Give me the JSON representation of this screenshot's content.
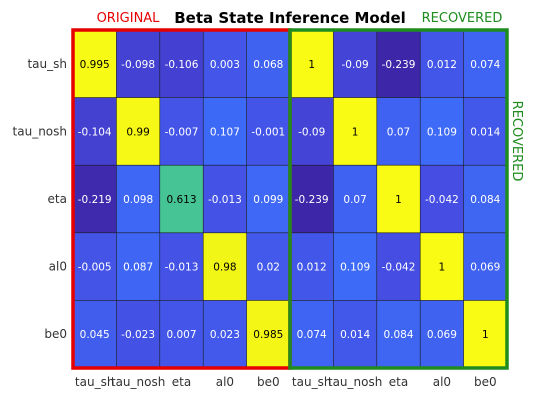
{
  "chart_data": {
    "type": "heatmap",
    "title": "Beta State Inference Model",
    "group_labels": {
      "original": "ORIGINAL",
      "recovered_top": "RECOVERED",
      "recovered_side": "RECOVERED"
    },
    "rows": [
      "tau_sh",
      "tau_nosh",
      "eta",
      "al0",
      "be0"
    ],
    "columns": [
      "tau_sh",
      "tau_nosh",
      "eta",
      "al0",
      "be0",
      "tau_sh",
      "tau_nosh",
      "eta",
      "al0",
      "be0"
    ],
    "values": [
      [
        0.995,
        -0.098,
        -0.106,
        0.003,
        0.068,
        1,
        -0.09,
        -0.239,
        0.012,
        0.074
      ],
      [
        -0.104,
        0.99,
        -0.007,
        0.107,
        -0.001,
        -0.09,
        1,
        0.07,
        0.109,
        0.014
      ],
      [
        -0.219,
        0.098,
        0.613,
        -0.013,
        0.099,
        -0.239,
        0.07,
        1,
        -0.042,
        0.084
      ],
      [
        -0.005,
        0.087,
        -0.013,
        0.98,
        0.02,
        0.012,
        0.109,
        -0.042,
        1,
        0.069
      ],
      [
        0.045,
        -0.023,
        0.007,
        0.023,
        0.985,
        0.074,
        0.014,
        0.084,
        0.069,
        1
      ]
    ],
    "value_labels": [
      [
        "0.995",
        "-0.098",
        "-0.106",
        "0.003",
        "0.068",
        "1",
        "-0.09",
        "-0.239",
        "0.012",
        "0.074"
      ],
      [
        "-0.104",
        "0.99",
        "-0.007",
        "0.107",
        "-0.001",
        "-0.09",
        "1",
        "0.07",
        "0.109",
        "0.014"
      ],
      [
        "-0.219",
        "0.098",
        "0.613",
        "-0.013",
        "0.099",
        "-0.239",
        "0.07",
        "1",
        "-0.042",
        "0.084"
      ],
      [
        "-0.005",
        "0.087",
        "-0.013",
        "0.98",
        "0.02",
        "0.012",
        "0.109",
        "-0.042",
        "1",
        "0.069"
      ],
      [
        "0.045",
        "-0.023",
        "0.007",
        "0.023",
        "0.985",
        "0.074",
        "0.014",
        "0.084",
        "0.069",
        "1"
      ]
    ],
    "colormap": "parula",
    "grid": true,
    "colors": {
      "original_box": "#e60000",
      "recovered_box": "#1e8c1e"
    }
  }
}
